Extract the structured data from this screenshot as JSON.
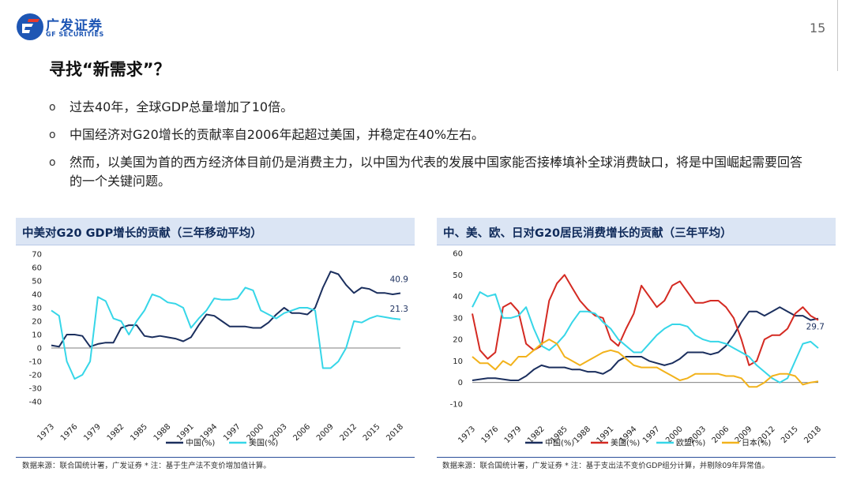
{
  "header": {
    "logo_cn": "广发证券",
    "logo_en": "GF SECURITIES",
    "page_number": "15"
  },
  "title": "寻找“新需求”？",
  "bullets": [
    "过去40年，全球GDP总量增加了10倍。",
    "中国经济对G20增长的贡献率自2006年起超过美国，并稳定在40%左右。",
    "然而，以美国为首的西方经济体目前仍是消费主力，以中国为代表的发展中国家能否接棒填补全球消费缺口，将是中国崛起需要回答的一个关键问题。"
  ],
  "bullet_marker": "o",
  "colors": {
    "china": "#1b2f5e",
    "us": "#d42a22",
    "us_left": "#36d6e8",
    "eu": "#36d6e8",
    "japan": "#f2b21b",
    "panel": "#dbe5f4"
  },
  "chart_data": [
    {
      "type": "line",
      "title": "中美对G20 GDP增长的贡献（三年移动平均）",
      "source": "数据来源：联合国统计署，广发证券 * 注：基于生产法不变价增加值计算。",
      "x": [
        1973,
        1974,
        1975,
        1976,
        1977,
        1978,
        1979,
        1980,
        1981,
        1982,
        1983,
        1984,
        1985,
        1986,
        1987,
        1988,
        1989,
        1990,
        1991,
        1992,
        1993,
        1994,
        1995,
        1996,
        1997,
        1998,
        1999,
        2000,
        2001,
        2002,
        2003,
        2004,
        2005,
        2006,
        2007,
        2008,
        2009,
        2010,
        2011,
        2012,
        2013,
        2014,
        2015,
        2016,
        2017,
        2018
      ],
      "x_ticks": [
        1973,
        1976,
        1979,
        1982,
        1985,
        1988,
        1991,
        1994,
        1997,
        2000,
        2003,
        2006,
        2009,
        2012,
        2015,
        2018
      ],
      "ylim": [
        -40,
        70
      ],
      "y_ticks": [
        -40,
        -30,
        -20,
        -10,
        0,
        10,
        20,
        30,
        40,
        50,
        60,
        70
      ],
      "series": [
        {
          "name": "中国(%)",
          "color": "#1b2f5e",
          "values": [
            2,
            1,
            10,
            10,
            9,
            1,
            3,
            4,
            4,
            15,
            17,
            17,
            9,
            8,
            9,
            8,
            7,
            5,
            8,
            17,
            25,
            24,
            20,
            16,
            16,
            16,
            15,
            15,
            19,
            25,
            30,
            26,
            26,
            25,
            30,
            45,
            57,
            55,
            47,
            41,
            45,
            44,
            41,
            41,
            40,
            40.9
          ],
          "end_label": "40.9"
        },
        {
          "name": "美国(%)",
          "color": "#36d6e8",
          "values": [
            28,
            24,
            -10,
            -23,
            -20,
            -10,
            38,
            35,
            22,
            20,
            10,
            20,
            28,
            40,
            38,
            34,
            33,
            30,
            15,
            22,
            28,
            37,
            36,
            36,
            37,
            45,
            43,
            28,
            25,
            22,
            26,
            28,
            30,
            30,
            28,
            -15,
            -15,
            -10,
            0,
            20,
            19,
            22,
            24,
            23,
            22,
            21.3
          ],
          "end_label": "21.3"
        }
      ]
    },
    {
      "type": "line",
      "title": "中、美、欧、日对G20居民消费增长的贡献（三年平均）",
      "source": "数据来源：联合国统计署，广发证券 * 注：基于支出法不变价GDP组分计算，并剔除09年异常值。",
      "x": [
        1973,
        1974,
        1975,
        1976,
        1977,
        1978,
        1979,
        1980,
        1981,
        1982,
        1983,
        1984,
        1985,
        1986,
        1987,
        1988,
        1989,
        1990,
        1991,
        1992,
        1993,
        1994,
        1995,
        1996,
        1997,
        1998,
        1999,
        2000,
        2001,
        2002,
        2003,
        2004,
        2005,
        2006,
        2007,
        2008,
        2009,
        2010,
        2011,
        2012,
        2013,
        2014,
        2015,
        2016,
        2017,
        2018
      ],
      "x_ticks": [
        1973,
        1976,
        1979,
        1982,
        1985,
        1988,
        1991,
        1994,
        1997,
        2000,
        2003,
        2006,
        2009,
        2012,
        2015,
        2018
      ],
      "ylim": [
        -10,
        60
      ],
      "y_ticks": [
        -10,
        0,
        10,
        20,
        30,
        40,
        50,
        60
      ],
      "series": [
        {
          "name": "中国(%)",
          "color": "#1b2f5e",
          "values": [
            1,
            1.5,
            2,
            2,
            1.5,
            1,
            1,
            3,
            6,
            8,
            7,
            7,
            7,
            6,
            6,
            5,
            5,
            4,
            6,
            10,
            12,
            12,
            12,
            10,
            9,
            8,
            9,
            11,
            14,
            14,
            14,
            13,
            14,
            17,
            22,
            28,
            33,
            33,
            31,
            33,
            35,
            33,
            31,
            31,
            29,
            29.7
          ],
          "end_label": "29.7"
        },
        {
          "name": "美国(%)",
          "color": "#d42a22",
          "values": [
            32,
            15,
            11,
            14,
            35,
            37,
            33,
            18,
            15,
            17,
            38,
            46,
            50,
            44,
            38,
            34,
            31,
            30,
            20,
            17,
            25,
            32,
            45,
            40,
            35,
            38,
            45,
            47,
            42,
            37,
            37,
            38,
            38,
            35,
            30,
            20,
            8,
            10,
            20,
            22,
            22,
            25,
            32,
            35,
            31,
            29
          ],
          "end_label": ""
        },
        {
          "name": "欧盟(%)",
          "color": "#36d6e8",
          "values": [
            35,
            42,
            40,
            41,
            30,
            30,
            31,
            35,
            25,
            17,
            15,
            18,
            22,
            28,
            33,
            33,
            32,
            28,
            25,
            20,
            17,
            14,
            14,
            18,
            22,
            25,
            27,
            27,
            26,
            22,
            20,
            19,
            19,
            18,
            16,
            14,
            12,
            8,
            5,
            2,
            0,
            2,
            10,
            18,
            19,
            16
          ],
          "end_label": ""
        },
        {
          "name": "日本(%)",
          "color": "#f2b21b",
          "values": [
            12,
            9,
            9,
            6,
            10,
            8,
            12,
            12,
            15,
            18,
            20,
            18,
            12,
            10,
            8,
            10,
            12,
            14,
            15,
            14,
            11,
            8,
            7,
            7,
            7,
            5,
            3,
            1,
            2,
            4,
            4,
            4,
            4,
            3,
            3,
            2,
            -2,
            -2,
            0,
            3,
            4,
            4,
            3,
            -1,
            0,
            0.5
          ],
          "end_label": ""
        }
      ]
    }
  ]
}
